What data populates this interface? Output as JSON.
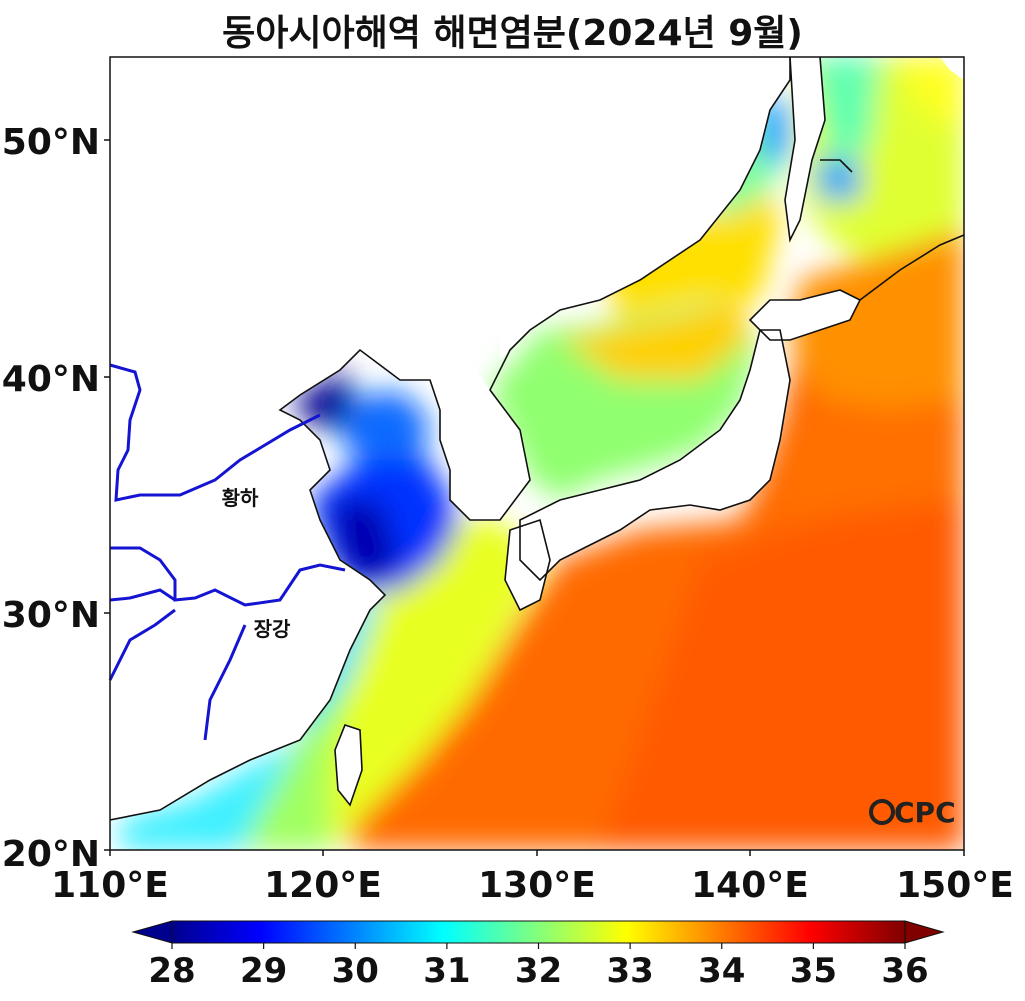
{
  "title": "동아시아해역 해면염분(2024년 9월)",
  "axes": {
    "lat_ticks": [
      "20°N",
      "30°N",
      "40°N",
      "50°N"
    ],
    "lon_ticks": [
      "110°E",
      "120°E",
      "130°E",
      "140°E",
      "150°E"
    ],
    "lon_range": [
      110,
      150
    ],
    "lat_range": [
      20,
      53.5
    ]
  },
  "rivers": {
    "yellow_river": "황하",
    "yangtze": "장강"
  },
  "colorbar": {
    "ticks": [
      "28",
      "29",
      "30",
      "31",
      "32",
      "33",
      "34",
      "35",
      "36"
    ],
    "min": 28,
    "max": 36,
    "extend": "both",
    "colormap": "jet"
  },
  "logo": "CPC",
  "colors": {
    "river": "#1414d2",
    "coast": "#111111"
  }
}
